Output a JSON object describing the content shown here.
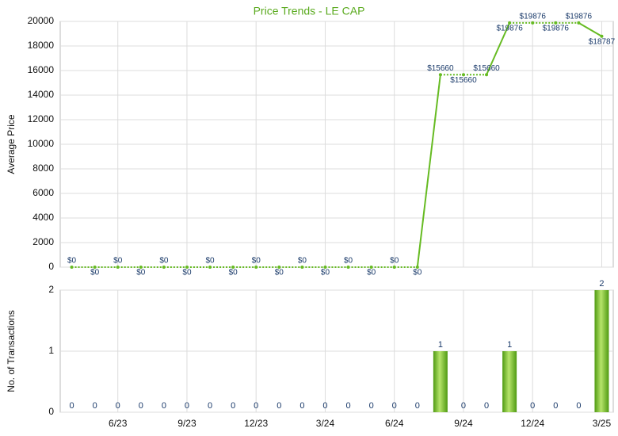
{
  "chart_data": [
    {
      "type": "line",
      "title": "Price Trends - LE CAP",
      "ylabel": "Average Price",
      "color": "#66bb22",
      "values": [
        0,
        0,
        0,
        0,
        0,
        0,
        0,
        0,
        0,
        0,
        0,
        0,
        0,
        0,
        0,
        0,
        15660,
        15660,
        15660,
        19876,
        19876,
        19876,
        19876,
        18787
      ],
      "value_labels": [
        "$0",
        "$0",
        "$0",
        "$0",
        "$0",
        "$0",
        "$0",
        "$0",
        "$0",
        "$0",
        "$0",
        "$0",
        "$0",
        "$0",
        "$0",
        "$0",
        "$15660",
        "$15660",
        "$15660",
        "$19876",
        "$19876",
        "$19876",
        "$19876",
        "$18787"
      ],
      "ylim": [
        0,
        20000
      ],
      "yticks": [
        0,
        2000,
        4000,
        6000,
        8000,
        10000,
        12000,
        14000,
        16000,
        18000,
        20000
      ],
      "grid": true
    },
    {
      "type": "bar",
      "ylabel": "No. of Transactions",
      "color": "#6cbf22",
      "categories": [
        null,
        null,
        "6/23",
        null,
        null,
        "9/23",
        null,
        null,
        "12/23",
        null,
        null,
        "3/24",
        null,
        null,
        "6/24",
        null,
        null,
        "9/24",
        null,
        null,
        "12/24",
        null,
        null,
        "3/25"
      ],
      "values": [
        0,
        0,
        0,
        0,
        0,
        0,
        0,
        0,
        0,
        0,
        0,
        0,
        0,
        0,
        0,
        0,
        1,
        0,
        0,
        1,
        0,
        0,
        0,
        2
      ],
      "ylim": [
        0,
        2
      ],
      "yticks": [
        0,
        1,
        2
      ],
      "grid": true
    }
  ]
}
